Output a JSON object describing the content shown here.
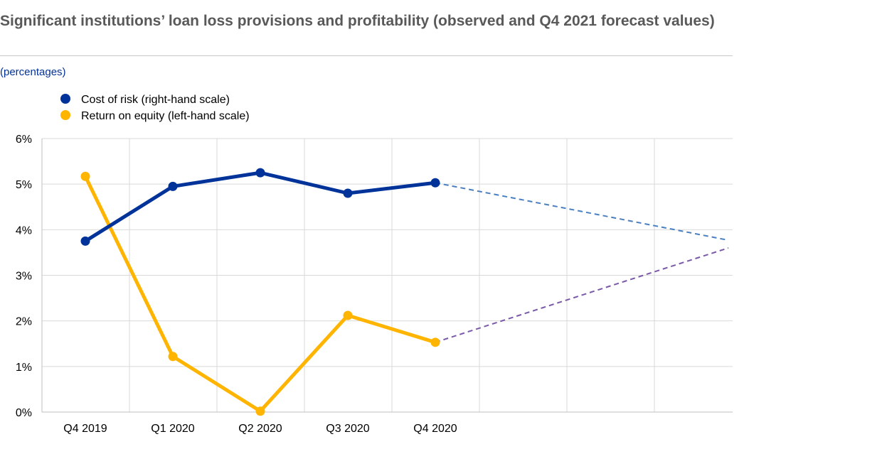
{
  "title": "Significant institutions’ loan loss provisions and profitability (observed and Q4 2021 forecast values)",
  "units": "(percentages)",
  "colors": {
    "cost_of_risk": "#003399",
    "return_on_equity": "#ffb400",
    "cost_of_risk_forecast": "#4a7fc1",
    "return_on_equity_forecast": "#7a5aa8",
    "grid": "#d9d9d9",
    "axis": "#bfbfbf"
  },
  "chart_data": {
    "type": "line",
    "categories": [
      "Q4 2019",
      "Q1 2020",
      "Q2 2020",
      "Q3 2020",
      "Q4 2020"
    ],
    "left_axis": {
      "ylim": [
        0,
        6
      ],
      "ticks": [
        0,
        1,
        2,
        3,
        4,
        5,
        6
      ],
      "tick_labels": [
        "0%",
        "1%",
        "2%",
        "3%",
        "4%",
        "5%",
        "6%"
      ]
    },
    "right_axis": {
      "ticks": [],
      "tick_labels": []
    },
    "x_range_slots": [
      0,
      7.35
    ],
    "grid": true,
    "legend_position": "top-left",
    "series": [
      {
        "name": "Cost of risk (right-hand scale)",
        "axis": "right",
        "values": [
          3.75,
          4.95,
          5.25,
          4.8,
          5.03
        ],
        "forecast": {
          "from_index": 4,
          "to_x": 7.35,
          "to_value": 3.77
        }
      },
      {
        "name": "Return on equity (left-hand scale)",
        "axis": "left",
        "values": [
          5.17,
          1.22,
          0.02,
          2.12,
          1.53
        ],
        "forecast": {
          "from_index": 4,
          "to_x": 7.35,
          "to_value": 3.6
        }
      }
    ]
  }
}
